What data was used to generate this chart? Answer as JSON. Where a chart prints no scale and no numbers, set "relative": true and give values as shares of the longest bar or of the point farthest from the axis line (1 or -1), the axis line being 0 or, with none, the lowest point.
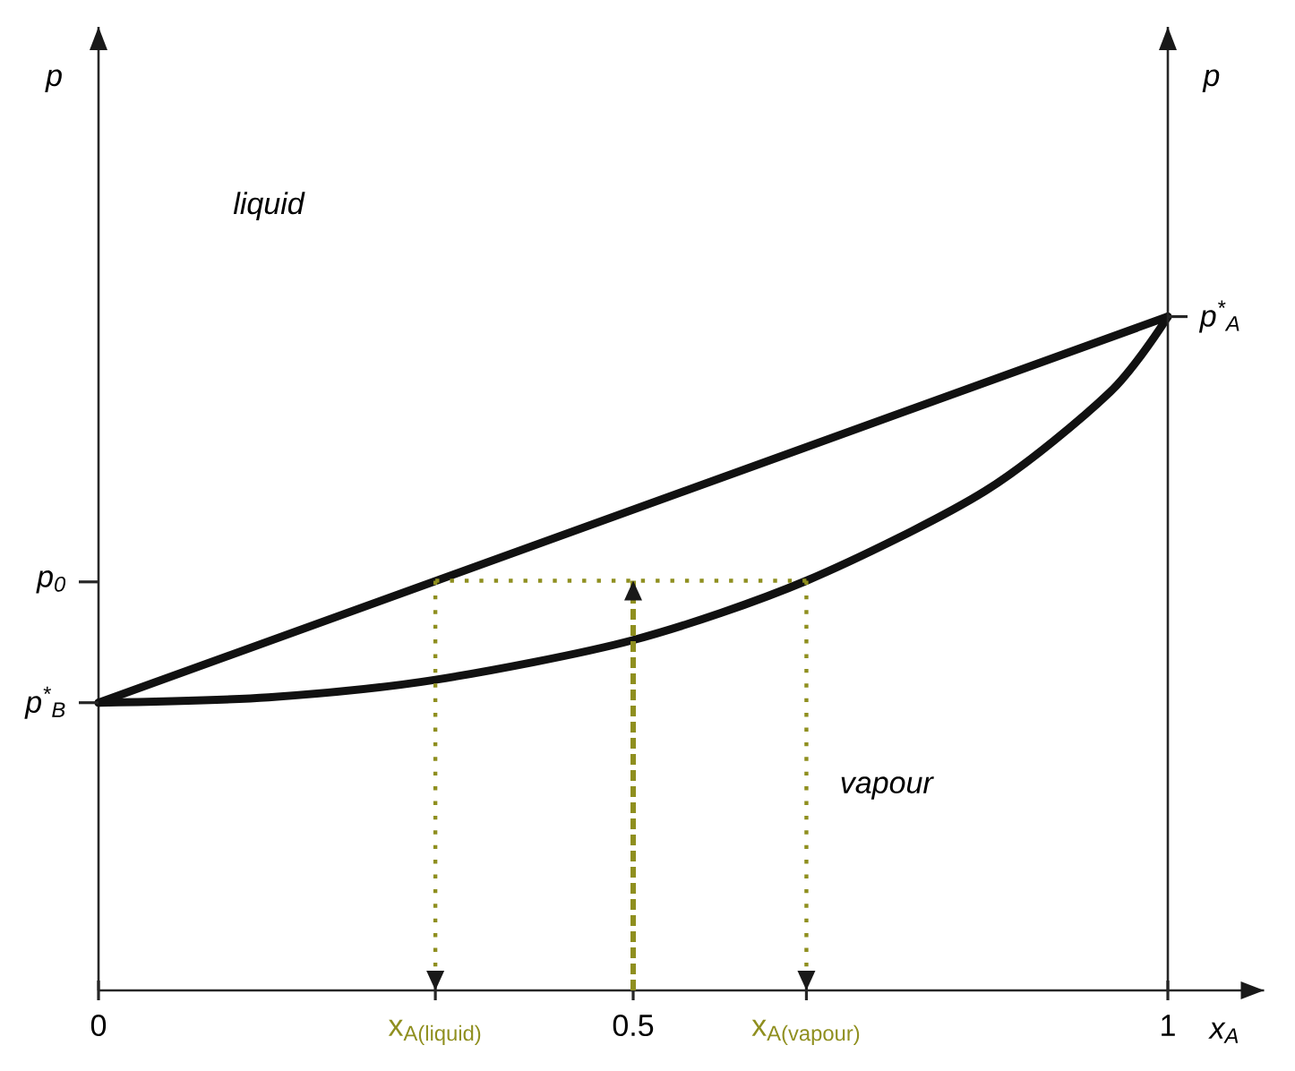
{
  "chart_data": {
    "type": "line",
    "relative": true,
    "xlabel": "x$_{A}$",
    "xlim": [
      0,
      1.09
    ],
    "xticks": [
      0,
      0.5,
      1,
      {
        "value": 0.315,
        "label": "x$_{A(liquid)}$"
      },
      {
        "value": 0.662,
        "label": "x$_{A(vapour)}$"
      }
    ],
    "series": [
      {
        "color": "#111111",
        "x": [
          0,
          1
        ],
        "values": [
          0.427,
          1
        ]
      },
      {
        "color": "#111111",
        "x": [
          0,
          0.159,
          0.315,
          0.5,
          0.662,
          0.829,
          0.946,
          1
        ],
        "values": [
          0.427,
          0.435,
          0.461,
          0.52,
          0.608,
          0.741,
          0.888,
          1
        ]
      },
      {
        "color": "#8f8f1f",
        "line_style": "dotted",
        "x": [
          0.315,
          0.662
        ],
        "values": [
          0.608,
          0.608
        ]
      },
      {
        "color": "#8f8f1f",
        "line_style": "dotted",
        "x": [
          0.315,
          0.315
        ],
        "values": [
          0.608,
          0
        ]
      },
      {
        "color": "#8f8f1f",
        "line_style": "dotted",
        "x": [
          0.662,
          0.662
        ],
        "values": [
          0.608,
          0
        ]
      },
      {
        "color": "#8f8f1f",
        "line_style": "dashed",
        "x": [
          0.5,
          0.5
        ],
        "values": [
          0,
          0.608
        ]
      }
    ],
    "annotations": [
      "p",
      "p",
      "p$_{0}$",
      {
        "text": "p$^{*}$$_{B}$",
        "x": 0,
        "y": 0.427
      },
      {
        "text": "p$^{*}$$_{A}$",
        "x": 1,
        "y": 1
      },
      "liquid",
      "vapour"
    ]
  }
}
